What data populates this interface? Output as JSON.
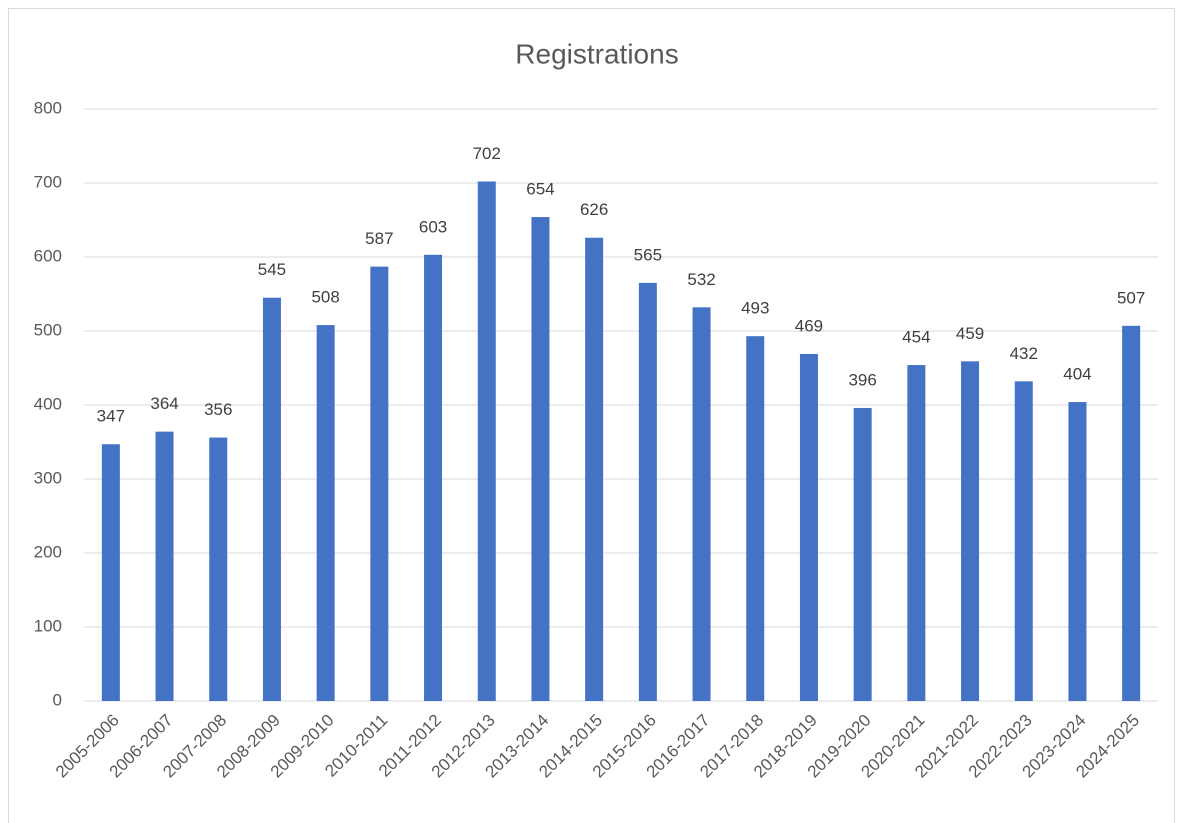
{
  "chart_data": {
    "type": "bar",
    "title": "Registrations",
    "categories": [
      "2005-2006",
      "2006-2007",
      "2007-2008",
      "2008-2009",
      "2009-2010",
      "2010-2011",
      "2011-2012",
      "2012-2013",
      "2013-2014",
      "2014-2015",
      "2015-2016",
      "2016-2017",
      "2017-2018",
      "2018-2019",
      "2019-2020",
      "2020-2021",
      "2021-2022",
      "2022-2023",
      "2023-2024",
      "2024-2025"
    ],
    "values": [
      347,
      364,
      356,
      545,
      508,
      587,
      603,
      702,
      654,
      626,
      565,
      532,
      493,
      469,
      396,
      454,
      459,
      432,
      404,
      507
    ],
    "color": "#4472c4",
    "ylim": [
      0,
      800
    ],
    "yticks": [
      0,
      100,
      200,
      300,
      400,
      500,
      600,
      700,
      800
    ],
    "grid": true
  }
}
